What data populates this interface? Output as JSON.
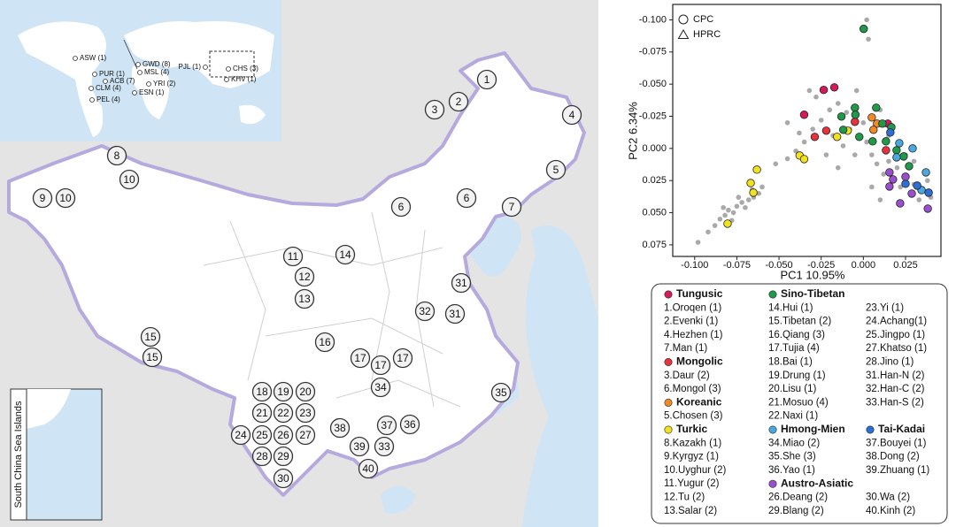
{
  "map": {
    "inset_title": "South China Sea Islands",
    "inset_labels": [
      "ASW (1)",
      "PUR (1)",
      "ACB (7)",
      "CLM (4)",
      "PEL (4)",
      "GWD (8)",
      "MSL (4)",
      "YRI (2)",
      "ESN (1)",
      "PJL (1)",
      "CHS (3)",
      "KHV (1)"
    ],
    "sites": [
      "1",
      "2",
      "3",
      "4",
      "5",
      "6",
      "6",
      "7",
      "8",
      "10",
      "9",
      "10",
      "11",
      "12",
      "13",
      "14",
      "15",
      "15",
      "16",
      "17",
      "17",
      "17",
      "31",
      "32",
      "31",
      "34",
      "35",
      "18",
      "19",
      "20",
      "21",
      "22",
      "23",
      "24",
      "25",
      "26",
      "27",
      "28",
      "29",
      "30",
      "38",
      "37",
      "36",
      "39",
      "33",
      "40"
    ]
  },
  "chart_data": {
    "type": "scatter",
    "xlabel": "PC1  10.95%",
    "ylabel": "PC2  6.34%",
    "xlim": [
      -0.113,
      0.046
    ],
    "ylim": [
      0.084,
      -0.112
    ],
    "xticks": [
      {
        "value": -0.1,
        "label": "-0.100"
      },
      {
        "value": -0.075,
        "label": "-0.075"
      },
      {
        "value": -0.05,
        "label": "-0.050"
      },
      {
        "value": -0.025,
        "label": "-0.025"
      },
      {
        "value": 0,
        "label": "0.000"
      },
      {
        "value": 0.025,
        "label": "0.025"
      }
    ],
    "yticks": [
      {
        "value": -0.1,
        "label": "-0.100"
      },
      {
        "value": -0.075,
        "label": "-0.075"
      },
      {
        "value": -0.05,
        "label": "-0.050"
      },
      {
        "value": -0.025,
        "label": "-0.025"
      },
      {
        "value": 0,
        "label": "0.000"
      },
      {
        "value": 0.025,
        "label": "0.025"
      },
      {
        "value": 0.05,
        "label": "0.050"
      },
      {
        "value": 0.075,
        "label": "0.075"
      }
    ],
    "marker_legend": [
      {
        "label": "CPC",
        "shape": "circle"
      },
      {
        "label": "HPRC",
        "shape": "triangle"
      }
    ],
    "series": [
      {
        "color": "#a9a9a9",
        "x": [
          -0.098,
          -0.092,
          -0.088,
          -0.085,
          -0.082,
          -0.08,
          -0.077,
          -0.075,
          -0.072,
          -0.07,
          -0.068,
          -0.065,
          -0.078,
          -0.083,
          -0.062,
          -0.06,
          -0.074,
          -0.066,
          -0.052,
          -0.045,
          -0.04,
          -0.035,
          -0.03,
          -0.025,
          -0.02,
          -0.015,
          -0.01,
          -0.028,
          -0.032,
          -0.018,
          -0.012,
          -0.005,
          -0.008,
          0,
          0.002,
          0.005,
          0.008,
          0.01,
          0.012,
          0.015,
          0.018,
          0.02,
          0.022,
          0.025,
          0.028,
          0.03,
          0.033,
          0.035,
          0.038,
          0.04,
          0.01,
          0.005,
          -0.004,
          0.002,
          0.003,
          -0.038,
          -0.045,
          -0.022,
          -0.015,
          0.015,
          0.025,
          0.03
        ],
        "y": [
          0.073,
          0.065,
          0.06,
          0.055,
          0.052,
          0.048,
          0.05,
          0.045,
          0.042,
          0.046,
          0.04,
          0.038,
          0.056,
          0.046,
          0.035,
          0.03,
          0.038,
          0.032,
          0.012,
          0.008,
          0.002,
          -0.005,
          -0.015,
          -0.022,
          -0.03,
          -0.035,
          -0.028,
          -0.04,
          -0.045,
          -0.01,
          -0.002,
          0.005,
          -0.015,
          -0.02,
          -0.005,
          0.005,
          0.012,
          -0.03,
          0.02,
          0.01,
          0.025,
          0.015,
          0.03,
          0.022,
          0.035,
          0.028,
          0.04,
          0.032,
          0.025,
          0.038,
          0.04,
          0.03,
          -0.045,
          -0.1,
          -0.085,
          -0.012,
          -0.02,
          0.005,
          0.015,
          -0.01,
          0.005,
          0.01
        ]
      },
      {
        "name": "Tungusic",
        "color": "#d6195b",
        "members": [
          "1.Oroqen (1)",
          "2.Evenki (1)",
          "4.Hezhen (1)",
          "7.Man (1)"
        ],
        "x": [
          -0.0235,
          -0.0172,
          -0.0351,
          0.0145
        ],
        "y": [
          -0.0455,
          -0.0475,
          -0.0262,
          -0.0193
        ]
      },
      {
        "name": "Mongolic",
        "color": "#e8323c",
        "members": [
          "3.Daur (2)",
          "6.Mongol  (3)"
        ],
        "x": [
          -0.0288,
          -0.022,
          -0.005,
          0.0134
        ],
        "y": [
          -0.009,
          -0.0138,
          -0.0207,
          0.0014
        ]
      },
      {
        "name": "Koreanic",
        "color": "#f08a24",
        "members": [
          "5.Chosen (3)"
        ],
        "x": [
          0.005,
          0.0081,
          0.006
        ],
        "y": [
          -0.0241,
          -0.0193,
          -0.0145
        ]
      },
      {
        "name": "Turkic",
        "color": "#f2e21e",
        "members": [
          "8.Kazakh (1)",
          "9.Kyrgyz (1)",
          "10.Uyghur (2)",
          "11.Yugur (2)",
          "12.Tu  (2)",
          "13.Salar (2)"
        ],
        "x": [
          -0.0631,
          -0.0668,
          -0.0652,
          -0.0805,
          -0.0156,
          -0.0093,
          -0.0378,
          -0.0351
        ],
        "y": [
          0.0165,
          0.0269,
          0.0344,
          0.0585,
          -0.009,
          -0.0138,
          0.0055,
          0.0083
        ]
      },
      {
        "name": "Sino-Tibetan",
        "color": "#1e9a48",
        "members": [
          "14.Hui (1)",
          "15.Tibetan (2)",
          "16.Qiang (3)",
          "17.Tujia  (4)",
          "18.Bai (1)",
          "19.Drung (1)",
          "20.Lisu (1)",
          "21.Mosuo (4)",
          "22.Naxi (1)",
          "23.Yi (1)",
          "24.Achang(1)",
          "25.Jingpo (1)",
          "27.Khatso (1)",
          "28.Jino (1)",
          "31.Han-N (2)",
          "32.Han-C (2)",
          "33.Han-S (2)"
        ],
        "x": [
          0.0002,
          -0.005,
          -0.0047,
          -0.013,
          0.0076,
          0.0113,
          -0.0024,
          0.0055,
          0.0134,
          0.0197,
          0.0239,
          0.0271,
          0.0166,
          -0.0119
        ],
        "y": [
          -0.093,
          -0.0317,
          -0.0262,
          -0.0248,
          -0.0317,
          -0.0193,
          -0.009,
          -0.0055,
          -0.0055,
          0.0014,
          0.0062,
          0.0138,
          -0.0165,
          -0.0145
        ]
      },
      {
        "name": "Hmong-Mien",
        "color": "#4aa8e0",
        "members": [
          "34.Miao (2)",
          "35.She (3)",
          "36.Yao (1)"
        ],
        "x": [
          0.0213,
          0.0292,
          0.0197,
          0.0371,
          0.0345
        ],
        "y": [
          -0.0041,
          0,
          0.0069,
          0.0186,
          0.0324
        ]
      },
      {
        "name": "Tai-Kadai",
        "color": "#2c6fd6",
        "members": [
          "37.Bouyei (1)",
          "38.Dong (2)",
          "39.Zhuang (1)"
        ],
        "x": [
          0.016,
          0.0319,
          0.0387,
          0.025
        ],
        "y": [
          -0.0124,
          0.0289,
          0.0344,
          0.0275
        ]
      },
      {
        "name": "Austro-Asiatic",
        "color": "#9a4fd0",
        "members": [
          "26.Deang (2)",
          "29.Blang (2)",
          "30.Wa (2)",
          "40.Kinh (2)"
        ],
        "x": [
          0.0155,
          0.0176,
          0.0155,
          0.025,
          0.0218,
          0.0382,
          0.0287
        ],
        "y": [
          0.0186,
          0.0241,
          0.0296,
          0.022,
          0.0427,
          0.0468,
          0.0351
        ]
      }
    ]
  }
}
